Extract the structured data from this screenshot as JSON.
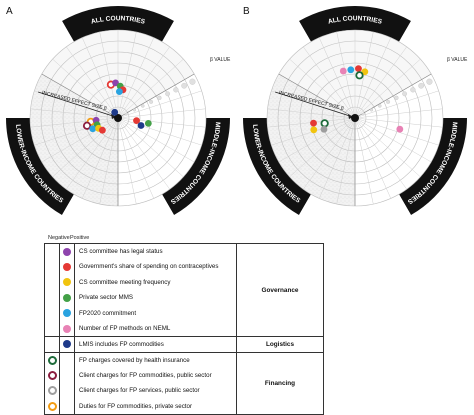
{
  "panels": [
    {
      "letter": "A",
      "top_label": "ALL COUNTRIES",
      "right_label": "MIDDLE-INCOME COUNTRIES",
      "left_label": "LOWER-INCOME COUNTRIES",
      "axis_label": "INCREASED EFFECT SIZE β",
      "axis_value_label": "β VALUE",
      "points": [
        {
          "sector": "top",
          "ring": 3.1,
          "angle": -12,
          "color": "#e53935",
          "style": "ring"
        },
        {
          "sector": "top",
          "ring": 3.2,
          "angle": -4,
          "color": "#8e44ad",
          "style": "dot"
        },
        {
          "sector": "top",
          "ring": 2.9,
          "angle": 4,
          "color": "#43a047",
          "style": "dot"
        },
        {
          "sector": "top",
          "ring": 2.6,
          "angle": 10,
          "color": "#e53935",
          "style": "dot"
        },
        {
          "sector": "top",
          "ring": 2.4,
          "angle": 3,
          "color": "#29a3e0",
          "style": "dot"
        },
        {
          "sector": "top",
          "ring": 0.6,
          "angle": -30,
          "color": "#1e3a8a",
          "style": "dot"
        },
        {
          "sector": "right",
          "ring": 1.7,
          "angle": 98,
          "color": "#e53935",
          "style": "dot"
        },
        {
          "sector": "right",
          "ring": 2.8,
          "angle": 100,
          "color": "#43a047",
          "style": "dot"
        },
        {
          "sector": "right",
          "ring": 2.2,
          "angle": 108,
          "color": "#1e3a8a",
          "style": "dot"
        },
        {
          "sector": "left",
          "ring": 2.5,
          "angle": -98,
          "color": "#f39c12",
          "style": "ring"
        },
        {
          "sector": "left",
          "ring": 2.0,
          "angle": -96,
          "color": "#8e44ad",
          "style": "dot"
        },
        {
          "sector": "left",
          "ring": 2.9,
          "angle": -104,
          "color": "#8b1d3f",
          "style": "ring"
        },
        {
          "sector": "left",
          "ring": 2.0,
          "angle": -108,
          "color": "#43a047",
          "style": "dot"
        },
        {
          "sector": "left",
          "ring": 2.5,
          "angle": -113,
          "color": "#29a3e0",
          "style": "dot"
        },
        {
          "sector": "left",
          "ring": 2.0,
          "angle": -118,
          "color": "#f1c40f",
          "style": "dot"
        },
        {
          "sector": "left",
          "ring": 1.8,
          "angle": -128,
          "color": "#e53935",
          "style": "dot"
        }
      ]
    },
    {
      "letter": "B",
      "top_label": "ALL COUNTRIES",
      "right_label": "MIDDLE-INCOME COUNTRIES",
      "left_label": "LOWER-INCOME COUNTRIES",
      "axis_label": "INCREASED EFFECT SIZE β",
      "axis_value_label": "β VALUE",
      "points": [
        {
          "sector": "top",
          "ring": 4.4,
          "angle": -14,
          "color": "#e882b5",
          "style": "dot"
        },
        {
          "sector": "top",
          "ring": 4.4,
          "angle": -5,
          "color": "#29a3e0",
          "style": "dot"
        },
        {
          "sector": "top",
          "ring": 4.5,
          "angle": 4,
          "color": "#e53935",
          "style": "dot"
        },
        {
          "sector": "top",
          "ring": 4.3,
          "angle": 12,
          "color": "#f1c40f",
          "style": "dot"
        },
        {
          "sector": "top",
          "ring": 3.9,
          "angle": 6,
          "color": "#1d6b3a",
          "style": "ring"
        },
        {
          "sector": "right",
          "ring": 4.2,
          "angle": 104,
          "color": "#e882b5",
          "style": "dot"
        },
        {
          "sector": "left",
          "ring": 3.8,
          "angle": -97,
          "color": "#e53935",
          "style": "dot"
        },
        {
          "sector": "left",
          "ring": 2.8,
          "angle": -100,
          "color": "#1d6b3a",
          "style": "ring"
        },
        {
          "sector": "left",
          "ring": 3.9,
          "angle": -106,
          "color": "#f1c40f",
          "style": "dot"
        },
        {
          "sector": "left",
          "ring": 3.0,
          "angle": -110,
          "color": "#9e9e9e",
          "style": "dot"
        }
      ]
    }
  ],
  "legend": {
    "header_negative": "Negative",
    "header_positive": "Positive",
    "groups": [
      {
        "name": "Governance",
        "items": [
          {
            "label": "CS committee has legal status",
            "pos": "#8e44ad",
            "neg": null
          },
          {
            "label": "Government's share of spending on contraceptives",
            "pos": "#e53935",
            "neg": null
          },
          {
            "label": "CS committee meeting frequency",
            "pos": "#f1c40f",
            "neg": null
          },
          {
            "label": "Private sector MMS",
            "pos": "#43a047",
            "neg": null
          },
          {
            "label": "FP2020 commitment",
            "pos": "#29a3e0",
            "neg": null
          },
          {
            "label": "Number of FP methods on NEML",
            "pos": "#e882b5",
            "neg": null
          }
        ]
      },
      {
        "name": "Logistics",
        "items": [
          {
            "label": "LMIS includes FP commodities",
            "pos": "#1e3a8a",
            "neg": null
          }
        ]
      },
      {
        "name": "Financing",
        "items": [
          {
            "label": "FP charges covered by health insurance",
            "pos": null,
            "neg": "#1d6b3a"
          },
          {
            "label": "Client charges for FP commodities, public sector",
            "pos": null,
            "neg": "#8b1d3f"
          },
          {
            "label": "Client charges for FP services, public sector",
            "pos": null,
            "neg": "#9e9e9e"
          },
          {
            "label": "Duties for FP commodities, private sector",
            "pos": null,
            "neg": "#f39c12"
          }
        ]
      }
    ]
  }
}
